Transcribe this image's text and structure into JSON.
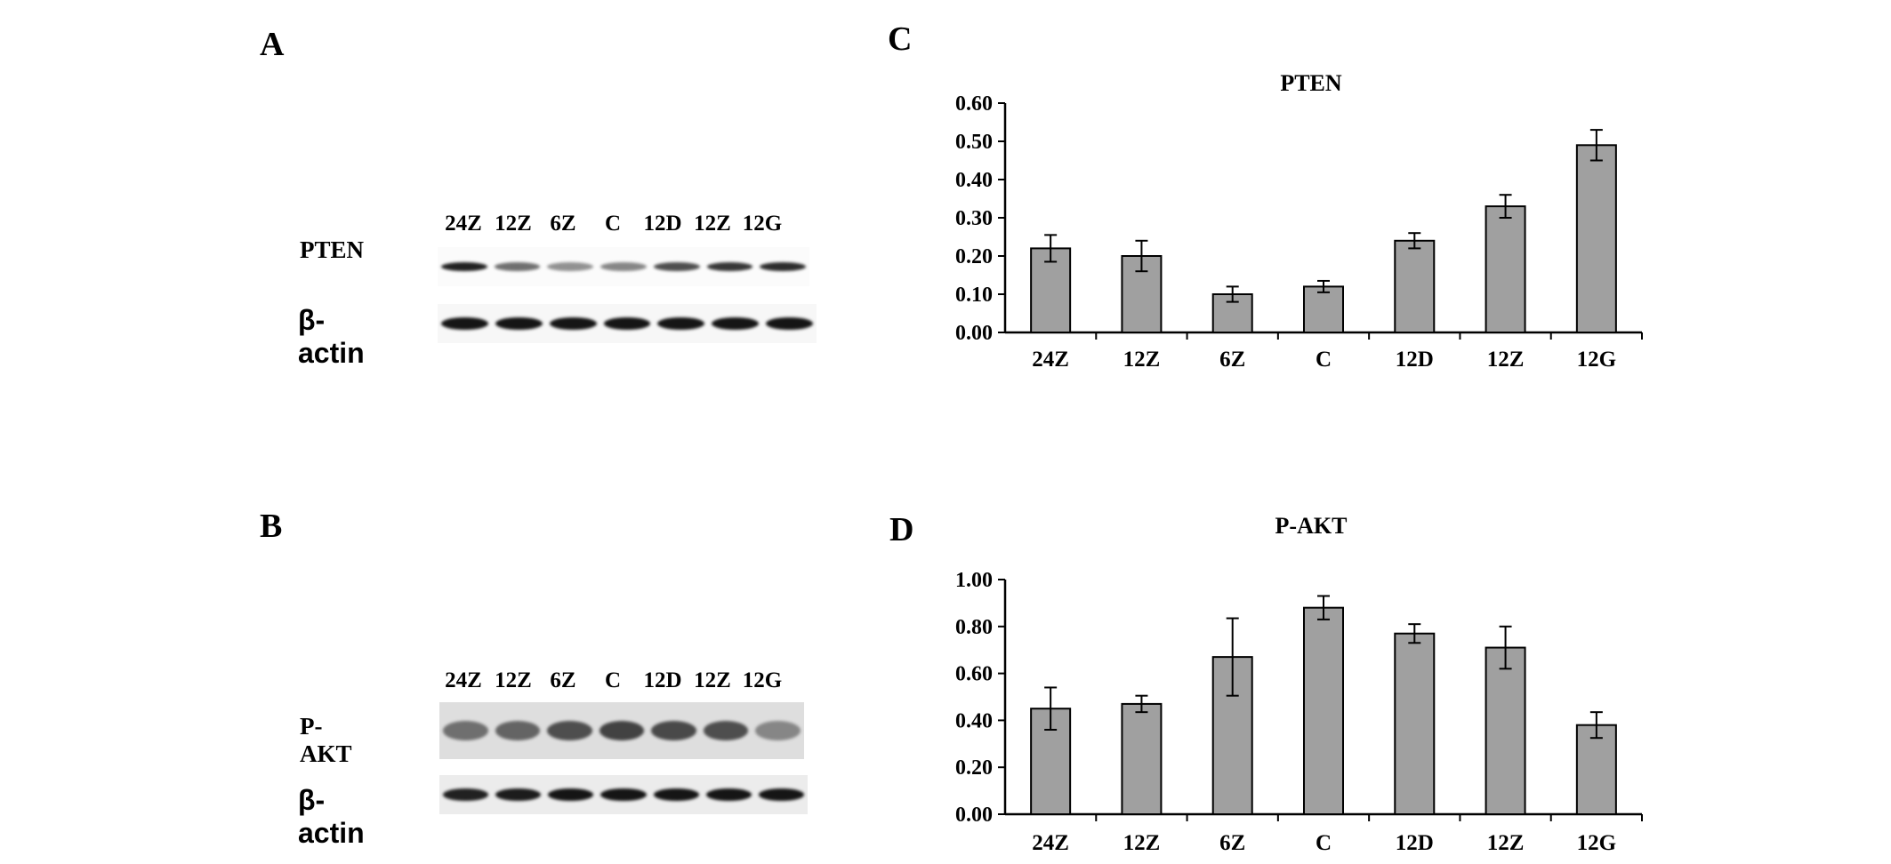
{
  "panels": {
    "a": {
      "letter": "A",
      "lanes": [
        "24Z",
        "12Z",
        "6Z",
        "C",
        "12D",
        "12Z",
        "12G"
      ],
      "target_label": "PTEN",
      "control_label": "β-actin",
      "target_band_intensity": [
        0.9,
        0.55,
        0.4,
        0.45,
        0.7,
        0.8,
        0.85
      ],
      "control_band_intensity": [
        0.95,
        0.95,
        0.95,
        0.95,
        0.95,
        0.95,
        0.95
      ]
    },
    "b": {
      "letter": "B",
      "lanes": [
        "24Z",
        "12Z",
        "6Z",
        "C",
        "12D",
        "12Z",
        "12G"
      ],
      "target_label": "P-AKT",
      "control_label": "β-actin",
      "target_band_intensity": [
        0.55,
        0.6,
        0.7,
        0.75,
        0.72,
        0.7,
        0.45
      ],
      "control_band_intensity": [
        0.9,
        0.92,
        0.95,
        0.95,
        0.95,
        0.95,
        0.95
      ]
    },
    "c": {
      "letter": "C"
    },
    "d": {
      "letter": "D"
    }
  },
  "colors": {
    "bar_fill": "#a0a0a0",
    "axis": "#000000"
  },
  "chart_data": [
    {
      "type": "bar",
      "title": "PTEN",
      "categories": [
        "24Z",
        "12Z",
        "6Z",
        "C",
        "12D",
        "12Z",
        "12G"
      ],
      "values": [
        0.22,
        0.2,
        0.1,
        0.12,
        0.24,
        0.33,
        0.49
      ],
      "errors": [
        0.035,
        0.04,
        0.02,
        0.015,
        0.02,
        0.03,
        0.04
      ],
      "ylim": [
        0,
        0.6
      ],
      "ytick_labels": [
        "0.00",
        "0.10",
        "0.20",
        "0.30",
        "0.40",
        "0.50",
        "0.60"
      ],
      "xlabel": "",
      "ylabel": "",
      "grid": false
    },
    {
      "type": "bar",
      "title": "P-AKT",
      "categories": [
        "24Z",
        "12Z",
        "6Z",
        "C",
        "12D",
        "12Z",
        "12G"
      ],
      "values": [
        0.45,
        0.47,
        0.67,
        0.88,
        0.77,
        0.71,
        0.38
      ],
      "errors": [
        0.09,
        0.035,
        0.165,
        0.05,
        0.04,
        0.09,
        0.055
      ],
      "ylim": [
        0,
        1.0
      ],
      "ytick_labels": [
        "0.00",
        "0.20",
        "0.40",
        "0.60",
        "0.80",
        "1.00"
      ],
      "xlabel": "",
      "ylabel": "",
      "grid": false
    }
  ]
}
